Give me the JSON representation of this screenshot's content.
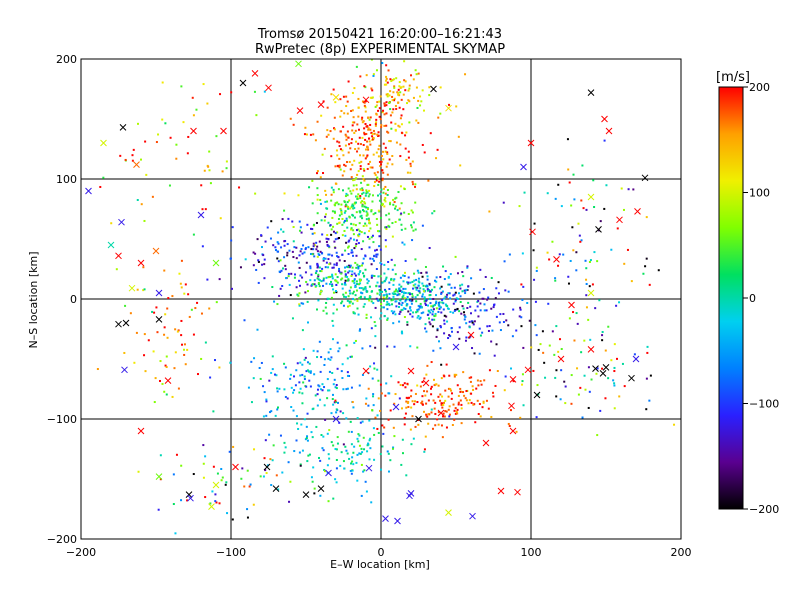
{
  "chart_data": {
    "type": "scatter",
    "title": "Tromsø 20150421 16:20:00–16:21:43",
    "subtitle": "RwPretec (8p) EXPERIMENTAL SKYMAP",
    "xlabel": "E–W location [km]",
    "ylabel": "N–S location [km]",
    "xlim": [
      -200,
      200
    ],
    "ylim": [
      -200,
      200
    ],
    "x_ticks": [
      -200,
      -100,
      0,
      100,
      200
    ],
    "y_ticks": [
      -200,
      -100,
      0,
      100,
      200
    ],
    "x_tick_labels": [
      "−200",
      "−100",
      "0",
      "100",
      "200"
    ],
    "y_tick_labels": [
      "−200",
      "−100",
      "0",
      "100",
      "200"
    ],
    "grid": true,
    "colorbar": {
      "label": "[m/s]",
      "range": [
        -200,
        200
      ],
      "ticks": [
        200,
        100,
        0,
        -100,
        -200
      ],
      "tick_labels": [
        "200",
        "100",
        "0",
        "−100",
        "−200"
      ],
      "colormap": [
        "#000000",
        "#5a0090",
        "#2a20ff",
        "#0080ff",
        "#00d0f0",
        "#00e060",
        "#80ff00",
        "#f0f000",
        "#ffa000",
        "#ff0000"
      ]
    },
    "clusters": [
      {
        "center": [
          -10,
          130
        ],
        "spread": [
          28,
          40
        ],
        "count": 300,
        "velocity": 170,
        "velocity_spread": 30
      },
      {
        "center": [
          10,
          170
        ],
        "spread": [
          25,
          22
        ],
        "count": 100,
        "velocity": 130,
        "velocity_spread": 50
      },
      {
        "center": [
          -15,
          75
        ],
        "spread": [
          30,
          22
        ],
        "count": 260,
        "velocity": 50,
        "velocity_spread": 35
      },
      {
        "center": [
          -40,
          35
        ],
        "spread": [
          45,
          22
        ],
        "count": 260,
        "velocity": -110,
        "velocity_spread": 40
      },
      {
        "center": [
          -20,
          10
        ],
        "spread": [
          35,
          20
        ],
        "count": 220,
        "velocity": 20,
        "velocity_spread": 40
      },
      {
        "center": [
          20,
          0
        ],
        "spread": [
          30,
          18
        ],
        "count": 280,
        "velocity": -20,
        "velocity_spread": 40
      },
      {
        "center": [
          55,
          -10
        ],
        "spread": [
          40,
          30
        ],
        "count": 180,
        "velocity": -120,
        "velocity_spread": 50
      },
      {
        "center": [
          -40,
          -70
        ],
        "spread": [
          40,
          35
        ],
        "count": 200,
        "velocity": -40,
        "velocity_spread": 45
      },
      {
        "center": [
          40,
          -85
        ],
        "spread": [
          40,
          20
        ],
        "count": 200,
        "velocity": 180,
        "velocity_spread": 30
      },
      {
        "center": [
          -25,
          -125
        ],
        "spread": [
          40,
          25
        ],
        "count": 130,
        "velocity": -10,
        "velocity_spread": 40
      },
      {
        "center": [
          -140,
          -30
        ],
        "spread": [
          25,
          40
        ],
        "count": 70,
        "velocity": 150,
        "velocity_spread": 70
      },
      {
        "center": [
          -130,
          110
        ],
        "spread": [
          40,
          60
        ],
        "count": 60,
        "velocity": 120,
        "velocity_spread": 90
      },
      {
        "center": [
          130,
          40
        ],
        "spread": [
          40,
          80
        ],
        "count": 100,
        "velocity": 0,
        "velocity_spread": 150
      },
      {
        "center": [
          130,
          -60
        ],
        "spread": [
          40,
          40
        ],
        "count": 70,
        "velocity": 0,
        "velocity_spread": 150
      },
      {
        "center": [
          -100,
          -150
        ],
        "spread": [
          50,
          30
        ],
        "count": 60,
        "velocity": 0,
        "velocity_spread": 140
      }
    ],
    "cross_markers": [
      [
        -172,
        143,
        -200
      ],
      [
        -173,
        64,
        -120
      ],
      [
        -163,
        112,
        170
      ],
      [
        -150,
        40,
        170
      ],
      [
        -125,
        140,
        200
      ],
      [
        -105,
        140,
        200
      ],
      [
        -84,
        188,
        200
      ],
      [
        -92,
        180,
        -200
      ],
      [
        -75,
        176,
        200
      ],
      [
        -55,
        196,
        60
      ],
      [
        -54,
        157,
        200
      ],
      [
        -40,
        162,
        200
      ],
      [
        -30,
        168,
        120
      ],
      [
        -10,
        166,
        200
      ],
      [
        35,
        175,
        -200
      ],
      [
        45,
        159,
        120
      ],
      [
        95,
        110,
        -120
      ],
      [
        100,
        130,
        200
      ],
      [
        140,
        172,
        -200
      ],
      [
        149,
        150,
        200
      ],
      [
        152,
        140,
        200
      ],
      [
        176,
        101,
        -200
      ],
      [
        140,
        85,
        100
      ],
      [
        171,
        73,
        200
      ],
      [
        145,
        58,
        -200
      ],
      [
        159,
        66,
        200
      ],
      [
        101,
        56,
        200
      ],
      [
        117,
        33,
        200
      ],
      [
        140,
        5,
        100
      ],
      [
        127,
        -5,
        200
      ],
      [
        120,
        -50,
        200
      ],
      [
        140,
        -42,
        200
      ],
      [
        148,
        -62,
        -200
      ],
      [
        170,
        -50,
        -120
      ],
      [
        167,
        -66,
        -200
      ],
      [
        150,
        -57,
        -200
      ],
      [
        143,
        -58,
        -200
      ],
      [
        98,
        -59,
        200
      ],
      [
        88,
        -67,
        200
      ],
      [
        104,
        -80,
        -200
      ],
      [
        87,
        -89,
        200
      ],
      [
        88,
        -110,
        200
      ],
      [
        70,
        -120,
        200
      ],
      [
        80,
        -160,
        200
      ],
      [
        91,
        -161,
        200
      ],
      [
        61,
        -181,
        -120
      ],
      [
        45,
        -178,
        100
      ],
      [
        20,
        -162,
        -120
      ],
      [
        3,
        -183,
        -120
      ],
      [
        11,
        -185,
        -120
      ],
      [
        19,
        -164,
        -120
      ],
      [
        -8,
        -141,
        -120
      ],
      [
        -35,
        -145,
        -120
      ],
      [
        -40,
        -158,
        -200
      ],
      [
        -50,
        -163,
        -200
      ],
      [
        -70,
        -158,
        -200
      ],
      [
        -76,
        -140,
        -200
      ],
      [
        -97,
        -140,
        200
      ],
      [
        -110,
        -155,
        100
      ],
      [
        -113,
        -173,
        100
      ],
      [
        -128,
        -163,
        -200
      ],
      [
        -127,
        -166,
        -120
      ],
      [
        -148,
        -148,
        60
      ],
      [
        -160,
        -110,
        200
      ],
      [
        -142,
        -68,
        200
      ],
      [
        -171,
        -59,
        -120
      ],
      [
        -175,
        -21,
        -200
      ],
      [
        -170,
        -20,
        -200
      ],
      [
        -148,
        -17,
        -200
      ],
      [
        -148,
        5,
        -120
      ],
      [
        -166,
        9,
        100
      ],
      [
        -160,
        30,
        200
      ],
      [
        -175,
        36,
        200
      ],
      [
        -185,
        130,
        100
      ],
      [
        -195,
        90,
        -120
      ],
      [
        -180,
        45,
        0
      ],
      [
        -120,
        70,
        -120
      ],
      [
        -110,
        30,
        60
      ],
      [
        50,
        -40,
        -120
      ],
      [
        60,
        -30,
        200
      ],
      [
        20,
        -60,
        200
      ],
      [
        30,
        -70,
        200
      ],
      [
        10,
        -90,
        -120
      ],
      [
        -10,
        -60,
        200
      ],
      [
        -30,
        -100,
        -120
      ],
      [
        25,
        -100,
        -200
      ],
      [
        40,
        -95,
        200
      ]
    ],
    "marker_style": {
      "crosses": "x",
      "points": "dot"
    }
  }
}
